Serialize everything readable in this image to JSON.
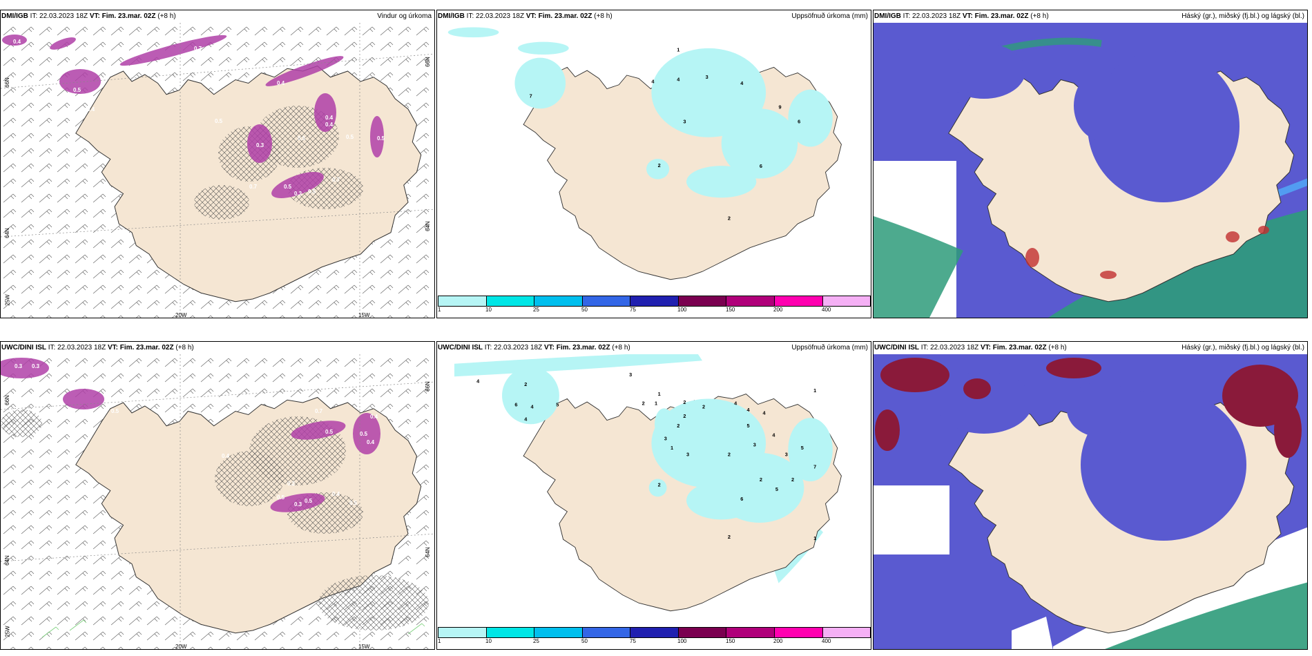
{
  "panels": [
    {
      "model": "DMI/IGB",
      "it": "IT: 22.03.2023 18Z",
      "vt": "VT: Fim. 23.mar. 02Z",
      "lead": "(+8 h)",
      "title": "Vindur og úrkoma",
      "lat_labels": [
        "66N",
        "64N",
        "25W"
      ],
      "lon_labels": [
        "20W",
        "15W"
      ],
      "right_labels": [
        "66N",
        "64N"
      ],
      "values": [
        "0.5",
        "0.4",
        "0.7",
        "0.5",
        "0.4",
        "0.5",
        "0.3",
        "0.5",
        "0.4",
        "0.5",
        "0.5",
        "0.5",
        "0.3",
        "0.7",
        "0.4",
        "0.5",
        "0.7",
        "0.4"
      ]
    },
    {
      "model": "DMI/IGB",
      "it": "IT: 22.03.2023 18Z",
      "vt": "VT: Fim. 23.mar. 02Z",
      "lead": "(+8 h)",
      "title": "Uppsöfnuð úrkoma (mm)",
      "values": [
        "1",
        "4",
        "4",
        "3",
        "4",
        "7",
        "3",
        "9",
        "6",
        "2",
        "6",
        "2"
      ]
    },
    {
      "model": "DMI/IGB",
      "it": "IT: 22.03.2023 18Z",
      "vt": "VT: Fim. 23.mar. 02Z",
      "lead": "(+8 h)",
      "title": "Háský (gr.), miðský (fj.bl.) og lágský (bl.)"
    },
    {
      "model": "UWC/DINI ISL",
      "it": "IT: 22.03.2023 18Z",
      "vt": "VT: Fim. 23.mar. 02Z",
      "lead": "(+8 h)",
      "title": "",
      "lat_labels": [
        "66N",
        "64N",
        "25W"
      ],
      "lon_labels": [
        "20W",
        "15W"
      ],
      "right_labels": [
        "66N",
        "64N"
      ],
      "values": [
        "0.3",
        "0.3",
        "0.4",
        "0.5",
        "0.7",
        "0.4",
        "0.5",
        "0.5",
        "0.4",
        "0.5",
        "0.3",
        "0.5",
        "0.4",
        "0.5",
        "0.4",
        "0.2"
      ]
    },
    {
      "model": "UWC/DINI ISL",
      "it": "IT: 22.03.2023 18Z",
      "vt": "VT: Fim. 23.mar. 02Z",
      "lead": "(+8 h)",
      "title": "Uppsöfnuð úrkoma (mm)",
      "values": [
        "4",
        "3",
        "2",
        "4",
        "6",
        "5",
        "4",
        "1",
        "2",
        "1",
        "2",
        "2",
        "4",
        "4",
        "4",
        "5",
        "3",
        "2",
        "2",
        "1",
        "3",
        "2",
        "3",
        "4",
        "3",
        "5",
        "2",
        "7",
        "5",
        "2",
        "2",
        "6",
        "2",
        "1",
        "1"
      ]
    },
    {
      "model": "UWC/DINI ISL",
      "it": "IT: 22.03.2023 18Z",
      "vt": "VT: Fim. 23.mar. 02Z",
      "lead": "(+8 h)",
      "title": "Háský (gr.), miðský (fj.bl.) og lágský (bl.)"
    }
  ],
  "colorbar": {
    "ticks": [
      "1",
      "10",
      "25",
      "50",
      "75",
      "100",
      "150",
      "200",
      "400"
    ],
    "colors": [
      "#b6f5f5",
      "#00e6e6",
      "#00bfee",
      "#3366e6",
      "#2020b0",
      "#7a0050",
      "#b0007a",
      "#ff00b0",
      "#f5b0f5"
    ]
  },
  "colors": {
    "land": "#f5e6d3",
    "precip_light": "#b6f5f5",
    "wind_precip": "#b040a8",
    "low_cloud": "#5a5ad0",
    "mid_cloud": "#2e9b7a",
    "high_cloud": "#8a1a3a"
  }
}
